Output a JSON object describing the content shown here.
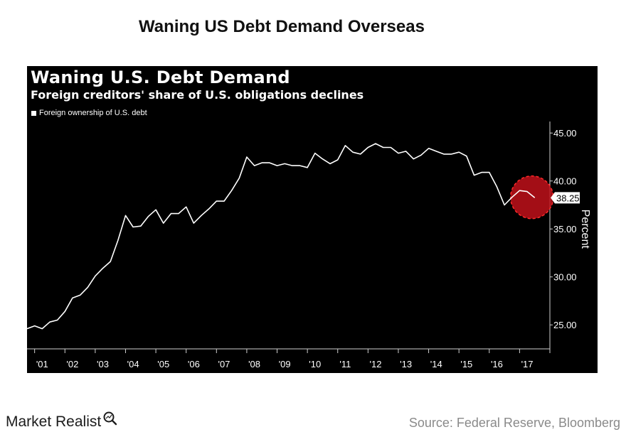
{
  "page": {
    "title": "Waning US Debt Demand Overseas",
    "brand": "Market Realist",
    "source": "Source: Federal Reserve, Bloomberg"
  },
  "chart_data": {
    "type": "line",
    "title": "Waning U.S. Debt Demand",
    "subtitle": "Foreign creditors' share of U.S. obligations declines",
    "ylabel": "Percent",
    "xlabel": "",
    "ylim": [
      22.5,
      46.2
    ],
    "xlim": [
      2000.75,
      2018.0
    ],
    "yticks": [
      45,
      40,
      35,
      30,
      25
    ],
    "ytick_labels": [
      "45.00",
      "40.00",
      "35.00",
      "30.00",
      "25.00"
    ],
    "xtick_labels": [
      "'01",
      "'02",
      "'03",
      "'04",
      "'05",
      "'06",
      "'07",
      "'08",
      "'09",
      "'10",
      "'11",
      "'12",
      "'13",
      "'14",
      "'15",
      "'16",
      "'17"
    ],
    "grid": false,
    "legend_position": "top-left",
    "colors": {
      "background": "#000000",
      "line": "#ffffff",
      "highlight": "#c0111a"
    },
    "last_value_label": "38.25",
    "highlight": {
      "x": 2017.5,
      "y": 38.3,
      "description": "red dashed circle marking recent decline"
    },
    "series": [
      {
        "name": "Foreign ownership of U.S. debt",
        "x": [
          2000.75,
          2001.0,
          2001.25,
          2001.5,
          2001.75,
          2002.0,
          2002.25,
          2002.5,
          2002.75,
          2003.0,
          2003.25,
          2003.5,
          2003.75,
          2004.0,
          2004.25,
          2004.5,
          2004.75,
          2005.0,
          2005.25,
          2005.5,
          2005.75,
          2006.0,
          2006.25,
          2006.5,
          2006.75,
          2007.0,
          2007.25,
          2007.5,
          2007.75,
          2008.0,
          2008.25,
          2008.5,
          2008.75,
          2009.0,
          2009.25,
          2009.5,
          2009.75,
          2010.0,
          2010.25,
          2010.5,
          2010.75,
          2011.0,
          2011.25,
          2011.5,
          2011.75,
          2012.0,
          2012.25,
          2012.5,
          2012.75,
          2013.0,
          2013.25,
          2013.5,
          2013.75,
          2014.0,
          2014.25,
          2014.5,
          2014.75,
          2015.0,
          2015.25,
          2015.5,
          2015.75,
          2016.0,
          2016.25,
          2016.5,
          2016.75,
          2017.0,
          2017.25,
          2017.5
        ],
        "values": [
          24.6,
          24.9,
          24.6,
          25.3,
          25.5,
          26.4,
          27.8,
          28.1,
          28.9,
          30.1,
          30.9,
          31.6,
          33.8,
          36.4,
          35.2,
          35.3,
          36.3,
          37.0,
          35.6,
          36.6,
          36.6,
          37.3,
          35.6,
          36.4,
          37.1,
          37.9,
          37.9,
          39.0,
          40.3,
          42.5,
          41.6,
          41.9,
          41.9,
          41.6,
          41.8,
          41.6,
          41.6,
          41.4,
          42.9,
          42.3,
          41.8,
          42.2,
          43.7,
          43.0,
          42.8,
          43.5,
          43.9,
          43.5,
          43.5,
          42.9,
          43.1,
          42.3,
          42.7,
          43.4,
          43.1,
          42.8,
          42.8,
          43.0,
          42.6,
          40.6,
          40.9,
          40.9,
          39.4,
          37.5,
          38.3,
          39.0,
          38.9,
          38.25
        ]
      }
    ]
  }
}
